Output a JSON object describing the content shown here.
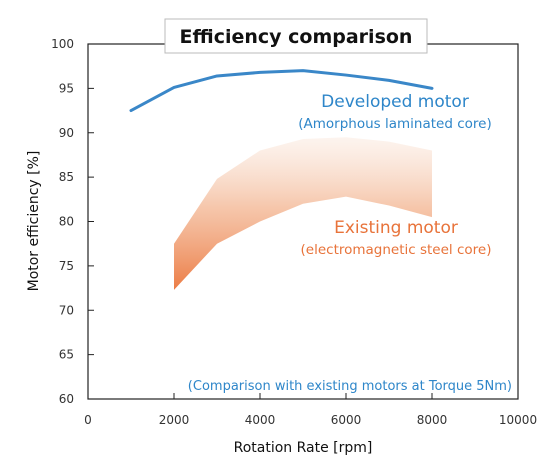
{
  "chart_data": {
    "type": "line",
    "title": "Efficiency comparison",
    "xlabel": "Rotation Rate [rpm]",
    "ylabel": "Motor efficiency [%]",
    "xlim": [
      0,
      10000
    ],
    "ylim": [
      60,
      100
    ],
    "x_ticks": [
      0,
      2000,
      4000,
      6000,
      8000,
      10000
    ],
    "y_ticks": [
      60,
      65,
      70,
      75,
      80,
      85,
      90,
      95,
      100
    ],
    "grid": false,
    "series": [
      {
        "name": "Developed motor",
        "sublabel": "(Amorphous laminated core)",
        "color": "#3a87c8",
        "x": [
          1000,
          2000,
          3000,
          4000,
          5000,
          6000,
          7000,
          8000
        ],
        "y": [
          92.5,
          95.1,
          96.4,
          96.8,
          97.0,
          96.5,
          95.9,
          95.0
        ]
      }
    ],
    "bands": [
      {
        "name": "Existing motor",
        "sublabel": "(electromagnetic steel core)",
        "color": "#ee8a55",
        "x": [
          2000,
          3000,
          4000,
          5000,
          6000,
          7000,
          8000
        ],
        "upper": [
          77.5,
          84.8,
          88.0,
          89.3,
          89.5,
          89.0,
          88.0
        ],
        "lower": [
          72.3,
          77.5,
          80.0,
          82.0,
          82.8,
          81.8,
          80.5
        ]
      }
    ],
    "annotation": "(Comparison with existing motors at Torque 5Nm)"
  }
}
